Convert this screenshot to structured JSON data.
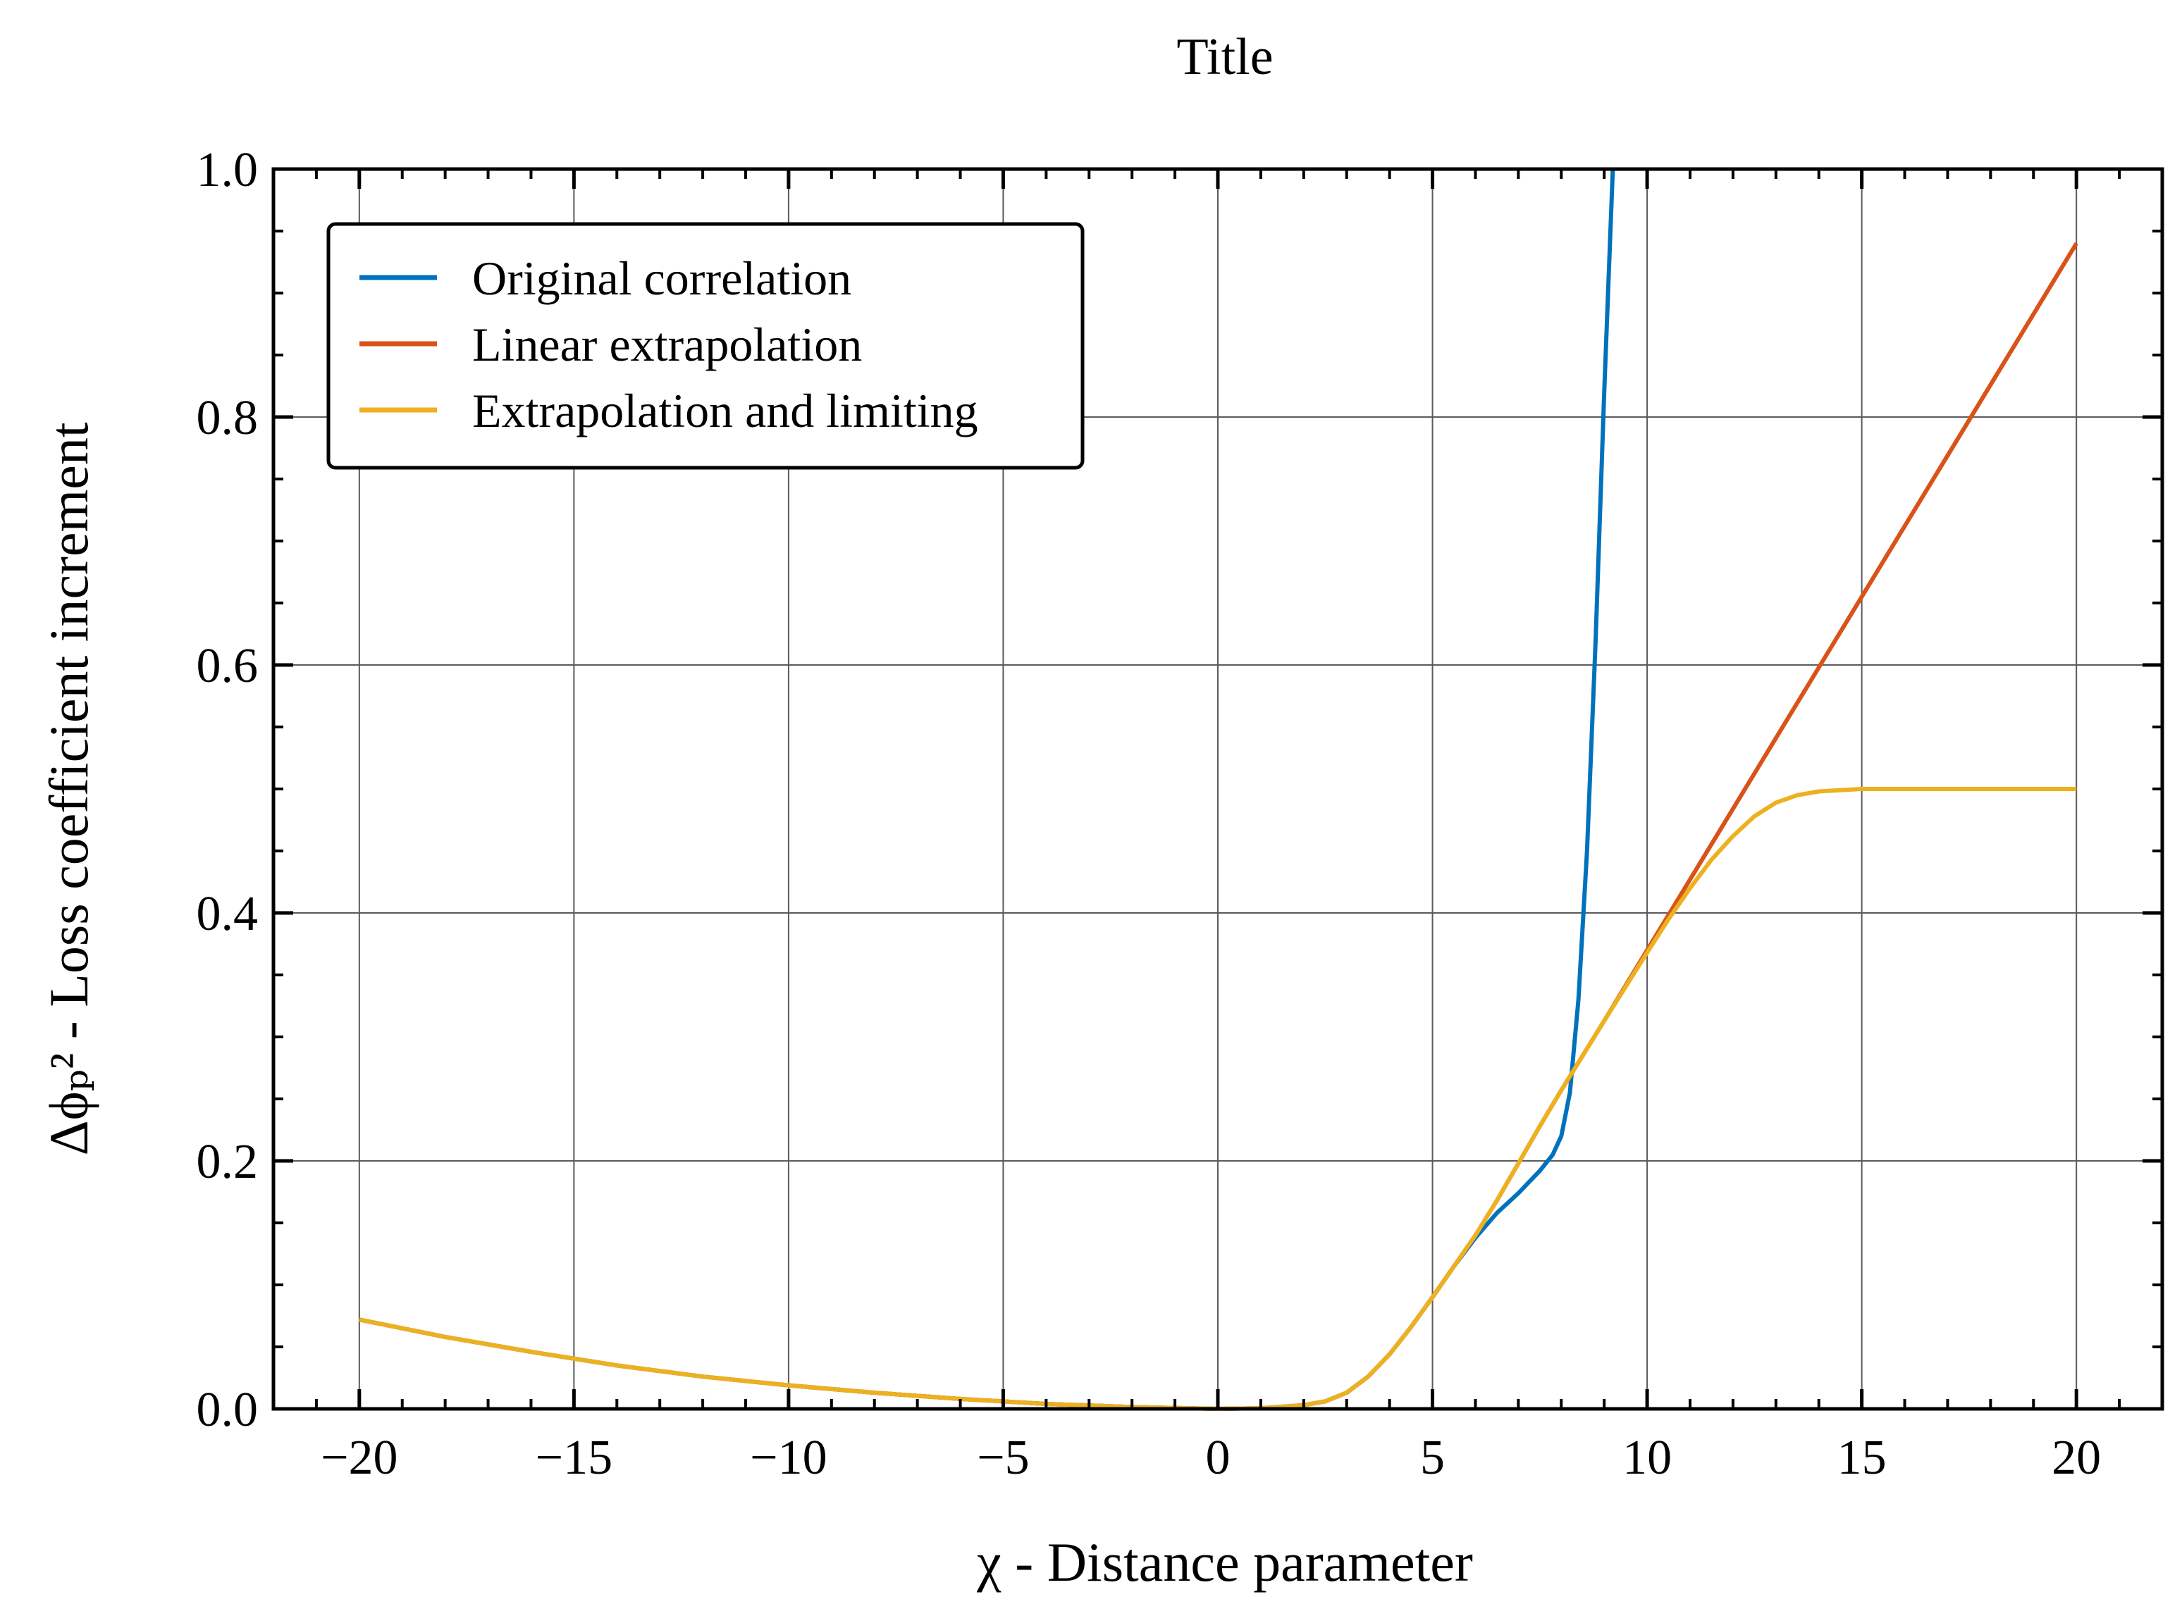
{
  "chart_data": {
    "type": "line",
    "title": "Title",
    "xlabel": "χ - Distance parameter",
    "ylabel": "Δϕₚ² - Loss coefficient increment",
    "xlim": [
      -22,
      22
    ],
    "ylim": [
      0,
      1
    ],
    "x_ticks": [
      -20,
      -15,
      -10,
      -5,
      0,
      5,
      10,
      15,
      20
    ],
    "x_tick_labels": [
      "−20",
      "−15",
      "−10",
      "−5",
      "0",
      "5",
      "10",
      "15",
      "20"
    ],
    "y_ticks": [
      0,
      0.2,
      0.4,
      0.6,
      0.8,
      1.0
    ],
    "y_tick_labels": [
      "0.0",
      "0.2",
      "0.4",
      "0.6",
      "0.8",
      "1.0"
    ],
    "grid": true,
    "legend_position": "top-left",
    "series": [
      {
        "name": "Original correlation",
        "color": "#0072BD",
        "x": [
          -20,
          -18,
          -16,
          -14,
          -12,
          -10,
          -8,
          -6,
          -4,
          -2,
          0,
          1,
          2,
          2.5,
          3,
          3.5,
          4,
          4.5,
          5,
          5.5,
          6,
          6.5,
          7,
          7.5,
          7.8,
          8.0,
          8.2,
          8.4,
          8.6,
          8.8,
          9.0,
          9.2
        ],
        "y": [
          0.072,
          0.058,
          0.046,
          0.035,
          0.026,
          0.019,
          0.013,
          0.008,
          0.004,
          0.0015,
          0.0,
          0.0005,
          0.003,
          0.006,
          0.013,
          0.026,
          0.044,
          0.066,
          0.09,
          0.115,
          0.138,
          0.158,
          0.174,
          0.192,
          0.205,
          0.22,
          0.255,
          0.33,
          0.45,
          0.62,
          0.82,
          1.0
        ]
      },
      {
        "name": "Linear extrapolation",
        "color": "#D95319",
        "x": [
          -20,
          -18,
          -16,
          -14,
          -12,
          -10,
          -8,
          -6,
          -4,
          -2,
          0,
          1,
          2,
          2.5,
          3,
          3.5,
          4,
          4.5,
          5,
          5.5,
          6,
          6.5,
          7,
          7.5,
          8,
          9,
          10,
          11,
          12,
          13,
          14,
          15,
          16,
          17,
          18,
          19,
          20
        ],
        "y": [
          0.072,
          0.058,
          0.046,
          0.035,
          0.026,
          0.019,
          0.013,
          0.008,
          0.004,
          0.0015,
          0.0,
          0.0005,
          0.003,
          0.006,
          0.013,
          0.026,
          0.044,
          0.066,
          0.09,
          0.115,
          0.14,
          0.168,
          0.198,
          0.228,
          0.257,
          0.313,
          0.37,
          0.427,
          0.484,
          0.541,
          0.598,
          0.655,
          0.712,
          0.769,
          0.826,
          0.883,
          0.94
        ]
      },
      {
        "name": "Extrapolation and limiting",
        "color": "#EDB120",
        "x": [
          -20,
          -18,
          -16,
          -14,
          -12,
          -10,
          -8,
          -6,
          -4,
          -2,
          0,
          1,
          2,
          2.5,
          3,
          3.5,
          4,
          4.5,
          5,
          5.5,
          6,
          6.5,
          7,
          7.5,
          8,
          9,
          10,
          10.5,
          11,
          11.5,
          12,
          12.5,
          13,
          13.5,
          14,
          15,
          16,
          17,
          18,
          19,
          20
        ],
        "y": [
          0.072,
          0.058,
          0.046,
          0.035,
          0.026,
          0.019,
          0.013,
          0.008,
          0.004,
          0.0015,
          0.0,
          0.0005,
          0.003,
          0.006,
          0.013,
          0.026,
          0.044,
          0.066,
          0.09,
          0.115,
          0.14,
          0.168,
          0.198,
          0.228,
          0.257,
          0.313,
          0.368,
          0.395,
          0.42,
          0.443,
          0.462,
          0.478,
          0.489,
          0.495,
          0.498,
          0.5,
          0.5,
          0.5,
          0.5,
          0.5,
          0.5
        ]
      }
    ]
  }
}
